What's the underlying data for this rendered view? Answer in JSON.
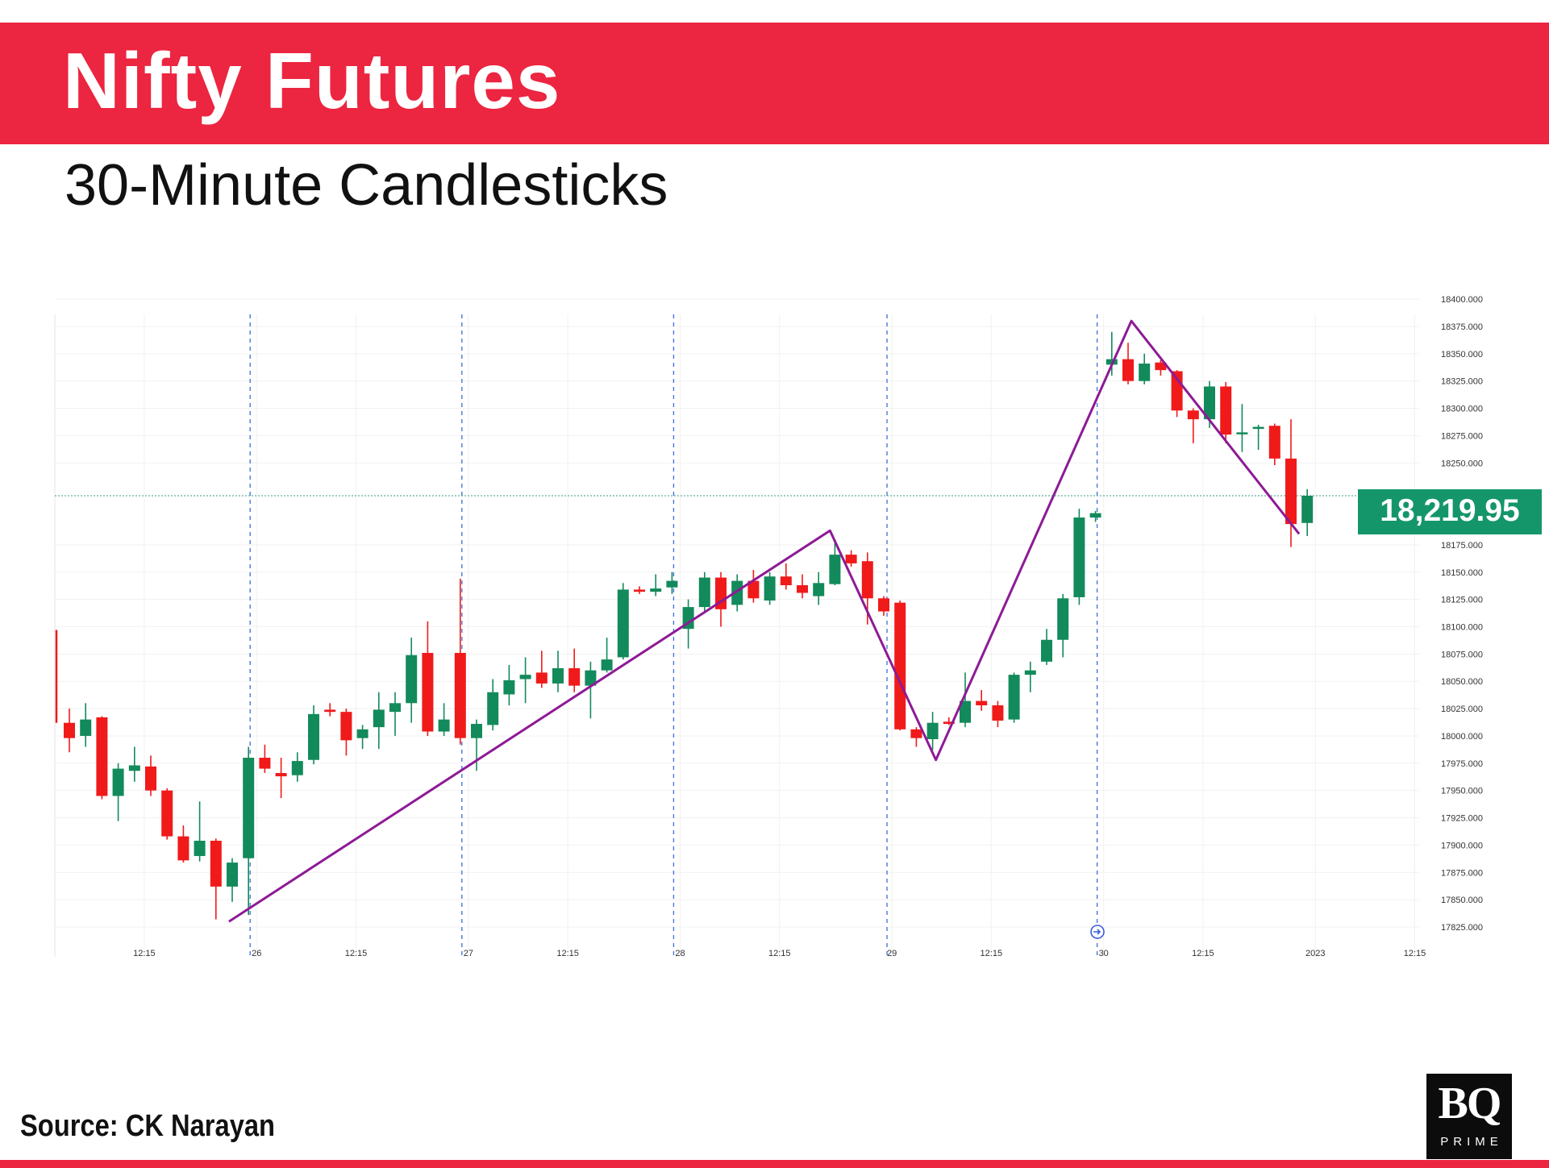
{
  "header": {
    "title": "Nifty Futures",
    "subtitle": "30-Minute Candlesticks"
  },
  "footer": {
    "source": "Source: CK Narayan",
    "logo_main": "BQ",
    "logo_sub": "PRIME"
  },
  "colors": {
    "brand_red": "#ec2540",
    "up": "#138a5b",
    "down": "#f01a1a",
    "trendline": "#8e1a96",
    "price_tag": "#14966a",
    "session_divider": "#3b6fd6"
  },
  "chart_data": {
    "type": "candlestick",
    "last_price_label": "18,219.95",
    "last_price": 18219.95,
    "ylim": [
      17815,
      18405
    ],
    "y_ticks": [
      "18400.000",
      "18375.000",
      "18350.000",
      "18325.000",
      "18300.000",
      "18275.000",
      "18250.000",
      "18175.000",
      "18150.000",
      "18125.000",
      "18100.000",
      "18075.000",
      "18050.000",
      "18025.000",
      "18000.000",
      "17975.000",
      "17950.000",
      "17925.000",
      "17900.000",
      "17875.000",
      "17850.000",
      "17825.000"
    ],
    "x_ticks": [
      {
        "label": "12:15",
        "bar": 4.6
      },
      {
        "label": "26",
        "bar": 11.5
      },
      {
        "label": "12:15",
        "bar": 17.6
      },
      {
        "label": "27",
        "bar": 24.5
      },
      {
        "label": "12:15",
        "bar": 30.6
      },
      {
        "label": "28",
        "bar": 37.5
      },
      {
        "label": "12:15",
        "bar": 43.6
      },
      {
        "label": "29",
        "bar": 50.5
      },
      {
        "label": "12:15",
        "bar": 56.6
      },
      {
        "label": "30",
        "bar": 63.5
      },
      {
        "label": "12:15",
        "bar": 69.6
      },
      {
        "label": "2023",
        "bar": 76.5
      },
      {
        "label": "12:15",
        "bar": 82.6
      }
    ],
    "session_breaks": [
      11.1,
      24.1,
      37.1,
      50.2,
      63.1
    ],
    "trendline": [
      {
        "bar": 9.8,
        "price": 17830
      },
      {
        "bar": 46.7,
        "price": 18188
      },
      {
        "bar": 53.2,
        "price": 17978
      },
      {
        "bar": 65.2,
        "price": 18380
      },
      {
        "bar": 75.5,
        "price": 18185
      }
    ],
    "candles": [
      {
        "o": 18012,
        "h": 18025,
        "l": 17985,
        "c": 17998
      },
      {
        "o": 18000,
        "h": 18030,
        "l": 17990,
        "c": 18015
      },
      {
        "o": 18017,
        "h": 18018,
        "l": 17942,
        "c": 17945
      },
      {
        "o": 17945,
        "h": 17975,
        "l": 17922,
        "c": 17970
      },
      {
        "o": 17968,
        "h": 17990,
        "l": 17958,
        "c": 17973
      },
      {
        "o": 17972,
        "h": 17982,
        "l": 17945,
        "c": 17950
      },
      {
        "o": 17950,
        "h": 17952,
        "l": 17905,
        "c": 17908
      },
      {
        "o": 17908,
        "h": 17918,
        "l": 17884,
        "c": 17886
      },
      {
        "o": 17890,
        "h": 17940,
        "l": 17885,
        "c": 17904
      },
      {
        "o": 17904,
        "h": 17906,
        "l": 17832,
        "c": 17862
      },
      {
        "o": 17862,
        "h": 17888,
        "l": 17848,
        "c": 17884
      },
      {
        "o": 17888,
        "h": 17990,
        "l": 17836,
        "c": 17980
      },
      {
        "o": 17980,
        "h": 17992,
        "l": 17966,
        "c": 17970
      },
      {
        "o": 17966,
        "h": 17980,
        "l": 17943,
        "c": 17963
      },
      {
        "o": 17964,
        "h": 17985,
        "l": 17958,
        "c": 17977
      },
      {
        "o": 17978,
        "h": 18028,
        "l": 17974,
        "c": 18020
      },
      {
        "o": 18024,
        "h": 18030,
        "l": 18018,
        "c": 18022
      },
      {
        "o": 18022,
        "h": 18025,
        "l": 17982,
        "c": 17996
      },
      {
        "o": 17998,
        "h": 18010,
        "l": 17988,
        "c": 18006
      },
      {
        "o": 18008,
        "h": 18040,
        "l": 17988,
        "c": 18024
      },
      {
        "o": 18022,
        "h": 18040,
        "l": 18000,
        "c": 18030
      },
      {
        "o": 18030,
        "h": 18090,
        "l": 18012,
        "c": 18074
      },
      {
        "o": 18076,
        "h": 18105,
        "l": 18000,
        "c": 18004
      },
      {
        "o": 18004,
        "h": 18030,
        "l": 18000,
        "c": 18015
      },
      {
        "o": 18076,
        "h": 18144,
        "l": 17992,
        "c": 17998
      },
      {
        "o": 17998,
        "h": 18015,
        "l": 17968,
        "c": 18011
      },
      {
        "o": 18010,
        "h": 18052,
        "l": 18005,
        "c": 18040
      },
      {
        "o": 18038,
        "h": 18065,
        "l": 18028,
        "c": 18051
      },
      {
        "o": 18052,
        "h": 18072,
        "l": 18030,
        "c": 18056
      },
      {
        "o": 18058,
        "h": 18078,
        "l": 18044,
        "c": 18048
      },
      {
        "o": 18048,
        "h": 18078,
        "l": 18040,
        "c": 18062
      },
      {
        "o": 18062,
        "h": 18080,
        "l": 18040,
        "c": 18046
      },
      {
        "o": 18046,
        "h": 18068,
        "l": 18016,
        "c": 18060
      },
      {
        "o": 18060,
        "h": 18090,
        "l": 18058,
        "c": 18070
      },
      {
        "o": 18072,
        "h": 18140,
        "l": 18070,
        "c": 18134
      },
      {
        "o": 18134,
        "h": 18137,
        "l": 18130,
        "c": 18132
      },
      {
        "o": 18132,
        "h": 18148,
        "l": 18128,
        "c": 18135
      },
      {
        "o": 18136,
        "h": 18150,
        "l": 18130,
        "c": 18142
      },
      {
        "o": 18098,
        "h": 18125,
        "l": 18080,
        "c": 18118
      },
      {
        "o": 18118,
        "h": 18150,
        "l": 18112,
        "c": 18145
      },
      {
        "o": 18145,
        "h": 18150,
        "l": 18100,
        "c": 18116
      },
      {
        "o": 18120,
        "h": 18148,
        "l": 18114,
        "c": 18142
      },
      {
        "o": 18142,
        "h": 18152,
        "l": 18122,
        "c": 18126
      },
      {
        "o": 18124,
        "h": 18150,
        "l": 18120,
        "c": 18146
      },
      {
        "o": 18146,
        "h": 18158,
        "l": 18134,
        "c": 18138
      },
      {
        "o": 18138,
        "h": 18148,
        "l": 18126,
        "c": 18131
      },
      {
        "o": 18128,
        "h": 18150,
        "l": 18120,
        "c": 18140
      },
      {
        "o": 18139,
        "h": 18180,
        "l": 18138,
        "c": 18166
      },
      {
        "o": 18166,
        "h": 18170,
        "l": 18155,
        "c": 18158
      },
      {
        "o": 18160,
        "h": 18168,
        "l": 18102,
        "c": 18126
      },
      {
        "o": 18126,
        "h": 18128,
        "l": 18110,
        "c": 18114
      },
      {
        "o": 18122,
        "h": 18124,
        "l": 18005,
        "c": 18006
      },
      {
        "o": 18006,
        "h": 18008,
        "l": 17990,
        "c": 17998
      },
      {
        "o": 17997,
        "h": 18022,
        "l": 17987,
        "c": 18012
      },
      {
        "o": 18013,
        "h": 18017,
        "l": 18010,
        "c": 18011
      },
      {
        "o": 18012,
        "h": 18058,
        "l": 18008,
        "c": 18032
      },
      {
        "o": 18032,
        "h": 18042,
        "l": 18023,
        "c": 18028
      },
      {
        "o": 18028,
        "h": 18032,
        "l": 18008,
        "c": 18014
      },
      {
        "o": 18015,
        "h": 18058,
        "l": 18012,
        "c": 18056
      },
      {
        "o": 18056,
        "h": 18068,
        "l": 18040,
        "c": 18060
      },
      {
        "o": 18068,
        "h": 18098,
        "l": 18065,
        "c": 18088
      },
      {
        "o": 18088,
        "h": 18130,
        "l": 18072,
        "c": 18126
      },
      {
        "o": 18127,
        "h": 18208,
        "l": 18120,
        "c": 18200
      },
      {
        "o": 18200,
        "h": 18206,
        "l": 18196,
        "c": 18204
      },
      {
        "o": 18340,
        "h": 18370,
        "l": 18330,
        "c": 18345
      },
      {
        "o": 18345,
        "h": 18360,
        "l": 18322,
        "c": 18325
      },
      {
        "o": 18325,
        "h": 18350,
        "l": 18322,
        "c": 18341
      },
      {
        "o": 18342,
        "h": 18344,
        "l": 18330,
        "c": 18335
      },
      {
        "o": 18334,
        "h": 18335,
        "l": 18292,
        "c": 18298
      },
      {
        "o": 18298,
        "h": 18300,
        "l": 18268,
        "c": 18290
      },
      {
        "o": 18290,
        "h": 18325,
        "l": 18282,
        "c": 18320
      },
      {
        "o": 18320,
        "h": 18324,
        "l": 18268,
        "c": 18276
      },
      {
        "o": 18278,
        "h": 18304,
        "l": 18260,
        "c": 18278
      },
      {
        "o": 18282,
        "h": 18285,
        "l": 18262,
        "c": 18283
      },
      {
        "o": 18284,
        "h": 18286,
        "l": 18248,
        "c": 18254
      },
      {
        "o": 18254,
        "h": 18290,
        "l": 18173,
        "c": 18194
      },
      {
        "o": 18195,
        "h": 18226,
        "l": 18183,
        "c": 18219.95
      }
    ]
  }
}
